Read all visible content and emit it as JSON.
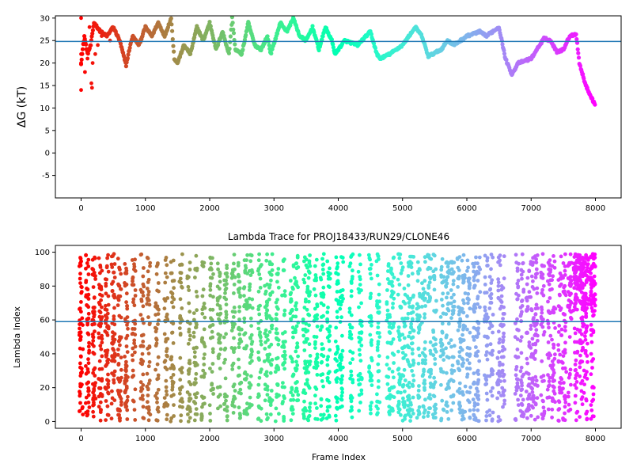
{
  "chart_data": [
    {
      "type": "scatter",
      "title": "",
      "xlabel": "",
      "ylabel": "ΔG (kT)",
      "xlim": [
        -400,
        8400
      ],
      "ylim": [
        -10,
        30.5
      ],
      "xticks": [
        0,
        1000,
        2000,
        3000,
        4000,
        5000,
        6000,
        7000,
        8000
      ],
      "yticks": [
        -5,
        0,
        5,
        10,
        15,
        20,
        25,
        30
      ],
      "colormap": "rainbow (red at frame 0 to violet at frame 8000)",
      "hline": 24.8,
      "hline_color": "#1f77b4",
      "trace_anchors": [
        [
          0,
          20
        ],
        [
          50,
          26
        ],
        [
          100,
          22
        ],
        [
          150,
          24
        ],
        [
          200,
          29
        ],
        [
          300,
          27
        ],
        [
          400,
          26
        ],
        [
          500,
          28
        ],
        [
          600,
          25
        ],
        [
          700,
          19.5
        ],
        [
          750,
          23
        ],
        [
          800,
          26
        ],
        [
          900,
          24
        ],
        [
          1000,
          28
        ],
        [
          1100,
          26
        ],
        [
          1200,
          29
        ],
        [
          1300,
          26
        ],
        [
          1400,
          30
        ],
        [
          1450,
          21
        ],
        [
          1500,
          20
        ],
        [
          1600,
          24
        ],
        [
          1700,
          22
        ],
        [
          1800,
          28
        ],
        [
          1900,
          25
        ],
        [
          2000,
          29
        ],
        [
          2100,
          23
        ],
        [
          2200,
          27
        ],
        [
          2300,
          22
        ],
        [
          2350,
          30
        ],
        [
          2400,
          23
        ],
        [
          2500,
          22
        ],
        [
          2600,
          29
        ],
        [
          2700,
          24
        ],
        [
          2800,
          23
        ],
        [
          2900,
          26
        ],
        [
          2950,
          22
        ],
        [
          3100,
          29
        ],
        [
          3200,
          27
        ],
        [
          3300,
          30
        ],
        [
          3400,
          26
        ],
        [
          3500,
          25
        ],
        [
          3600,
          28
        ],
        [
          3700,
          23
        ],
        [
          3800,
          28
        ],
        [
          3900,
          25
        ],
        [
          3950,
          22
        ],
        [
          4100,
          25
        ],
        [
          4300,
          24
        ],
        [
          4500,
          27
        ],
        [
          4600,
          22
        ],
        [
          4650,
          21
        ],
        [
          4800,
          22
        ],
        [
          5000,
          24
        ],
        [
          5200,
          28
        ],
        [
          5300,
          26
        ],
        [
          5400,
          21.5
        ],
        [
          5600,
          23
        ],
        [
          5700,
          25
        ],
        [
          5800,
          24
        ],
        [
          6000,
          26
        ],
        [
          6200,
          27
        ],
        [
          6300,
          26
        ],
        [
          6500,
          28
        ],
        [
          6600,
          21
        ],
        [
          6700,
          17.5
        ],
        [
          6800,
          20
        ],
        [
          7000,
          21
        ],
        [
          7200,
          25.5
        ],
        [
          7300,
          25
        ],
        [
          7400,
          22.5
        ],
        [
          7500,
          23
        ],
        [
          7600,
          26
        ],
        [
          7700,
          26.5
        ],
        [
          7750,
          20
        ],
        [
          7850,
          15
        ],
        [
          8000,
          10.5
        ]
      ],
      "scatter_extra": [
        [
          0,
          14
        ],
        [
          0,
          20
        ],
        [
          0,
          22
        ],
        [
          0,
          30
        ],
        [
          60,
          18
        ],
        [
          60,
          25
        ],
        [
          100,
          21
        ],
        [
          130,
          28
        ],
        [
          160,
          15.5
        ],
        [
          170,
          14.5
        ],
        [
          180,
          20
        ],
        [
          220,
          22
        ],
        [
          260,
          24
        ],
        [
          320,
          26
        ],
        [
          450,
          25
        ]
      ]
    },
    {
      "type": "scatter",
      "title": "Lambda Trace for PROJ18433/RUN29/CLONE46",
      "xlabel": "Frame Index",
      "ylabel": "Lambda Index",
      "xlim": [
        -400,
        8400
      ],
      "ylim": [
        -4,
        104
      ],
      "xticks": [
        0,
        1000,
        2000,
        3000,
        4000,
        5000,
        6000,
        7000,
        8000
      ],
      "yticks": [
        0,
        20,
        40,
        60,
        80,
        100
      ],
      "colormap": "rainbow (red at frame 0 to violet at frame 8000)",
      "hline": 59,
      "hline_color": "#1f77b4",
      "value_range": [
        0,
        99
      ],
      "late_segment": {
        "x_start": 7650,
        "x_end": 8000,
        "y_range": [
          65,
          99
        ]
      },
      "column_centers": [
        0,
        100,
        200,
        300,
        400,
        500,
        600,
        700,
        820,
        950,
        1050,
        1180,
        1320,
        1420,
        1550,
        1680,
        1780,
        1900,
        2030,
        2150,
        2250,
        2370,
        2470,
        2560,
        2640,
        2780,
        2880,
        2950,
        3050,
        3150,
        3280,
        3350,
        3480,
        3540,
        3650,
        3750,
        3850,
        3980,
        4050,
        4200,
        4340,
        4500,
        4620,
        4780,
        4850,
        4950,
        5020,
        5100,
        5150,
        5250,
        5330,
        5420,
        5500,
        5620,
        5700,
        5780,
        5880,
        5950,
        6030,
        6120,
        6180,
        6300,
        6380,
        6500,
        6560,
        6780,
        6860,
        6950,
        7020,
        7080,
        7180,
        7280,
        7350,
        7450,
        7520,
        7600,
        7700,
        7780,
        7850,
        7950
      ]
    }
  ]
}
